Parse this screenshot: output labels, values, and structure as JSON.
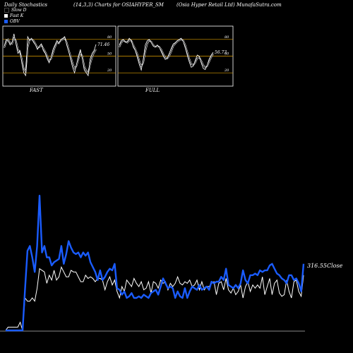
{
  "header": {
    "left": "Daily Stochastics",
    "mid": "(14,3,3) Charts for OSIAHYPER_SM",
    "right": "(Osia Hyper Retail Ltd) MunafaSutra.com"
  },
  "legend": [
    {
      "label": "Slow D",
      "color": "#000000"
    },
    {
      "label": "Fast K",
      "color": "#ffffff"
    },
    {
      "label": "OBV",
      "color": "#1a5cff"
    }
  ],
  "colors": {
    "obv": "#1a5cff",
    "close": "#ffffff",
    "level": "#e0a000",
    "panel_border": "#ffffff"
  },
  "panels": [
    {
      "name": "FAST",
      "label": "FAST",
      "value_label": "71.46",
      "ticks": [
        {
          "v": 80,
          "label": "80"
        },
        {
          "v": 50,
          "label": "50"
        },
        {
          "v": 20,
          "label": "20"
        }
      ],
      "fast_k": [
        68,
        80,
        78,
        70,
        75,
        90,
        72,
        55,
        60,
        38,
        20,
        15,
        85,
        78,
        82,
        75,
        70,
        62,
        68,
        72,
        60,
        55,
        45,
        38,
        48,
        62,
        70,
        78,
        72,
        80,
        82,
        85,
        70,
        58,
        45,
        30,
        20,
        35,
        50,
        62,
        45,
        25,
        20,
        15,
        45,
        55,
        60,
        71
      ],
      "slow_d": [
        65,
        75,
        80,
        74,
        72,
        82,
        78,
        62,
        58,
        45,
        28,
        22,
        65,
        80,
        80,
        78,
        72,
        65,
        66,
        70,
        64,
        58,
        50,
        42,
        45,
        55,
        66,
        74,
        74,
        78,
        80,
        82,
        75,
        62,
        50,
        38,
        28,
        32,
        44,
        56,
        50,
        32,
        24,
        20,
        35,
        48,
        56,
        62
      ]
    },
    {
      "name": "FULL",
      "label": "FULL",
      "value_label": "56.73",
      "ticks": [
        {
          "v": 80,
          "label": "80"
        },
        {
          "v": 50,
          "label": "50"
        },
        {
          "v": 20,
          "label": "20"
        }
      ],
      "fast_k": [
        70,
        78,
        80,
        75,
        76,
        82,
        78,
        66,
        60,
        48,
        35,
        25,
        45,
        70,
        78,
        80,
        74,
        68,
        66,
        70,
        66,
        58,
        50,
        44,
        46,
        55,
        64,
        72,
        74,
        78,
        80,
        82,
        76,
        65,
        52,
        40,
        30,
        32,
        42,
        52,
        50,
        38,
        28,
        26,
        34,
        45,
        52,
        57
      ],
      "slow_d": [
        66,
        74,
        78,
        76,
        74,
        78,
        78,
        70,
        63,
        54,
        42,
        32,
        38,
        58,
        72,
        78,
        76,
        70,
        67,
        68,
        67,
        62,
        54,
        48,
        46,
        50,
        58,
        68,
        72,
        76,
        78,
        80,
        78,
        70,
        58,
        46,
        36,
        34,
        38,
        46,
        48,
        42,
        34,
        30,
        32,
        40,
        48,
        54
      ]
    }
  ],
  "main": {
    "close_label": "316.55Close",
    "obv": [
      0.0,
      0.0,
      0.0,
      0.0,
      0.0,
      0.0,
      0.0,
      0.0,
      0.25,
      0.49,
      0.52,
      0.45,
      0.36,
      0.52,
      0.83,
      0.48,
      0.52,
      0.45,
      0.45,
      0.4,
      0.42,
      0.43,
      0.44,
      0.52,
      0.41,
      0.47,
      0.55,
      0.51,
      0.48,
      0.47,
      0.48,
      0.45,
      0.48,
      0.46,
      0.48,
      0.42,
      0.39,
      0.36,
      0.31,
      0.37,
      0.31,
      0.33,
      0.36,
      0.38,
      0.37,
      0.41,
      0.26,
      0.25,
      0.22,
      0.24,
      0.2,
      0.21,
      0.23,
      0.2,
      0.2,
      0.21,
      0.2,
      0.22,
      0.21,
      0.2,
      0.23,
      0.24,
      0.25,
      0.22,
      0.27,
      0.32,
      0.29,
      0.26,
      0.27,
      0.26,
      0.2,
      0.24,
      0.21,
      0.2,
      0.26,
      0.2,
      0.24,
      0.27,
      0.26,
      0.25,
      0.28,
      0.25,
      0.26,
      0.27,
      0.25,
      0.3,
      0.29,
      0.3,
      0.3,
      0.33,
      0.31,
      0.38,
      0.28,
      0.27,
      0.26,
      0.28,
      0.26,
      0.29,
      0.37,
      0.31,
      0.29,
      0.34,
      0.34,
      0.35,
      0.34,
      0.37,
      0.36,
      0.37,
      0.37,
      0.4,
      0.41,
      0.38,
      0.35,
      0.34,
      0.32,
      0.31,
      0.29,
      0.34,
      0.34,
      0.31,
      0.32,
      0.29,
      0.24,
      0.41
    ],
    "close": [
      0.0,
      0.02,
      0.02,
      0.02,
      0.02,
      0.02,
      0.05,
      0.0,
      0.2,
      0.18,
      0.18,
      0.2,
      0.18,
      0.26,
      0.38,
      0.37,
      0.36,
      0.29,
      0.34,
      0.31,
      0.37,
      0.31,
      0.33,
      0.39,
      0.36,
      0.33,
      0.33,
      0.37,
      0.36,
      0.36,
      0.33,
      0.3,
      0.3,
      0.34,
      0.32,
      0.33,
      0.32,
      0.3,
      0.32,
      0.32,
      0.31,
      0.25,
      0.3,
      0.33,
      0.28,
      0.31,
      0.24,
      0.2,
      0.27,
      0.24,
      0.31,
      0.29,
      0.27,
      0.32,
      0.29,
      0.27,
      0.3,
      0.25,
      0.26,
      0.3,
      0.23,
      0.3,
      0.29,
      0.26,
      0.31,
      0.29,
      0.3,
      0.25,
      0.29,
      0.27,
      0.29,
      0.33,
      0.29,
      0.28,
      0.3,
      0.29,
      0.31,
      0.27,
      0.28,
      0.31,
      0.25,
      0.3,
      0.25,
      0.27,
      0.27,
      0.29,
      0.3,
      0.22,
      0.29,
      0.3,
      0.25,
      0.32,
      0.25,
      0.23,
      0.26,
      0.22,
      0.24,
      0.28,
      0.2,
      0.27,
      0.3,
      0.24,
      0.28,
      0.26,
      0.28,
      0.26,
      0.33,
      0.22,
      0.27,
      0.32,
      0.22,
      0.29,
      0.31,
      0.23,
      0.21,
      0.22,
      0.31,
      0.24,
      0.2,
      0.3,
      0.31,
      0.24,
      0.21,
      0.34
    ]
  }
}
